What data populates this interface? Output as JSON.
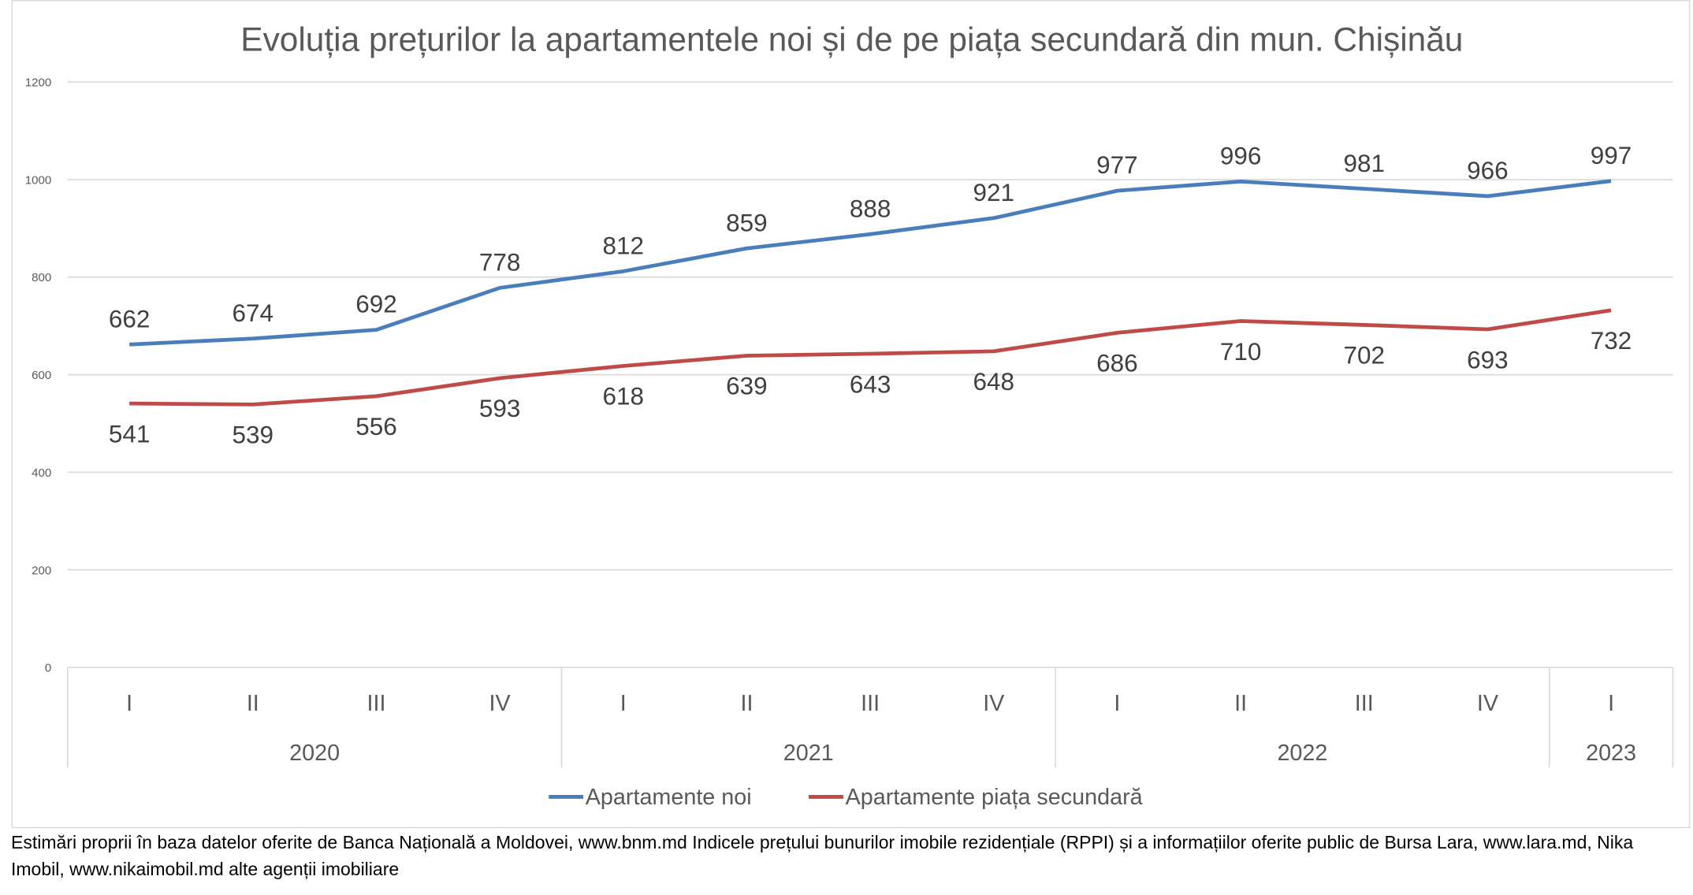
{
  "chart_data": {
    "type": "line",
    "title": "Evoluția prețurilor la apartamentele noi și de pe piața secundară din mun. Chișinău",
    "xlabel": "",
    "ylabel": "",
    "ylim": [
      0,
      1200
    ],
    "yticks": [
      0,
      200,
      400,
      600,
      800,
      1000,
      1200
    ],
    "grid": true,
    "categories": [
      "I",
      "II",
      "III",
      "IV",
      "I",
      "II",
      "III",
      "IV",
      "I",
      "II",
      "III",
      "IV",
      "I"
    ],
    "groups": [
      {
        "label": "2020",
        "span": 4
      },
      {
        "label": "2021",
        "span": 4
      },
      {
        "label": "2022",
        "span": 4
      },
      {
        "label": "2023",
        "span": 1
      }
    ],
    "series": [
      {
        "name": "Apartamente noi",
        "color": "#4A7EBB",
        "label_position": "above",
        "values": [
          662,
          674,
          692,
          778,
          812,
          859,
          888,
          921,
          977,
          996,
          981,
          966,
          997
        ]
      },
      {
        "name": "Apartamente piața secundară",
        "color": "#BE4B48",
        "label_position": "below",
        "values": [
          541,
          539,
          556,
          593,
          618,
          639,
          643,
          648,
          686,
          710,
          702,
          693,
          732
        ]
      }
    ],
    "legend_position": "bottom"
  },
  "footnote": "Estimări proprii în baza datelor oferite de Banca Națională a Moldovei, www.bnm.md Indicele prețului bunurilor imobile rezidențiale (RPPI) și a  informațiilor oferite public de Bursa Lara, www.lara.md, Nika Imobil, www.nikaimobil.md alte agenții imobiliare"
}
